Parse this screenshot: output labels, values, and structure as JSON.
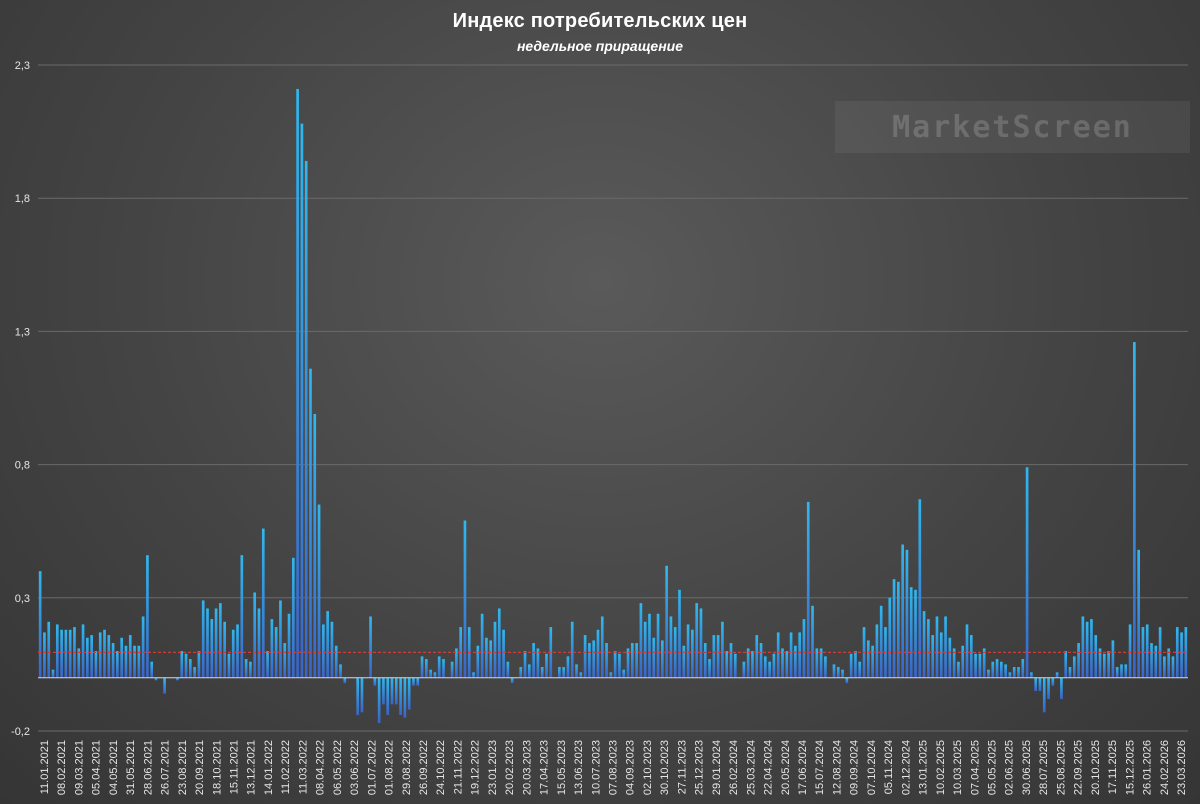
{
  "header": {
    "title": "Индекс потребительских цен",
    "subtitle": "недельное приращение"
  },
  "watermark": "MarketScreen",
  "chart_data": {
    "type": "bar",
    "title": "Индекс потребительских цен",
    "subtitle": "недельное приращение",
    "xlabel": "",
    "ylabel": "",
    "ylim": [
      -0.2,
      2.3
    ],
    "yticks": [
      "2,3",
      "1,8",
      "1,3",
      "0,8",
      "0,3",
      "-0,2"
    ],
    "ytick_values": [
      2.3,
      1.8,
      1.3,
      0.8,
      0.3,
      -0.2
    ],
    "grid": true,
    "legend": "none",
    "reference_line": {
      "value": 0.095,
      "color": "#d23a3a",
      "style": "dashed"
    },
    "colors": {
      "bar_top": "#2fb8ef",
      "bar_bottom": "#3a64c8"
    },
    "x_tick_labels": [
      "11.01.2021",
      "08.02.2021",
      "09.03.2021",
      "05.04.2021",
      "04.05.2021",
      "31.05.2021",
      "28.06.2021",
      "26.07.2021",
      "23.08.2021",
      "20.09.2021",
      "18.10.2021",
      "15.11.2021",
      "13.12.2021",
      "14.01.2022",
      "11.02.2022",
      "11.03.2022",
      "08.04.2022",
      "06.05.2022",
      "03.06.2022",
      "01.07.2022",
      "01.08.2022",
      "29.08.2022",
      "26.09.2022",
      "24.10.2022",
      "21.11.2022",
      "19.12.2022",
      "23.01.2023",
      "20.02.2023",
      "20.03.2023",
      "17.04.2023",
      "15.05.2023",
      "13.06.2023",
      "10.07.2023",
      "07.08.2023",
      "04.09.2023",
      "02.10.2023",
      "30.10.2023",
      "27.11.2023",
      "25.12.2023",
      "29.01.2024",
      "26.02.2024",
      "25.03.2024",
      "22.04.2024",
      "20.05.2024",
      "17.06.2024",
      "15.07.2024",
      "12.08.2024",
      "09.09.2024",
      "07.10.2024",
      "05.11.2024",
      "02.12.2024",
      "13.01.2025",
      "10.02.2025",
      "10.03.2025",
      "07.04.2025",
      "05.05.2025",
      "02.06.2025",
      "30.06.2025",
      "28.07.2025",
      "25.08.2025",
      "22.09.2025",
      "20.10.2025",
      "17.11.2025",
      "15.12.2025",
      "26.01.2026",
      "24.02.2026",
      "23.03.2026"
    ],
    "values": [
      0.4,
      0.17,
      0.21,
      0.03,
      0.2,
      0.18,
      0.18,
      0.18,
      0.19,
      0.11,
      0.2,
      0.15,
      0.16,
      0.1,
      0.17,
      0.18,
      0.16,
      0.13,
      0.1,
      0.15,
      0.12,
      0.16,
      0.12,
      0.12,
      0.23,
      0.46,
      0.06,
      -0.01,
      0.0,
      -0.06,
      0.0,
      0.0,
      -0.01,
      0.1,
      0.09,
      0.07,
      0.04,
      0.1,
      0.29,
      0.26,
      0.22,
      0.26,
      0.28,
      0.21,
      0.09,
      0.18,
      0.2,
      0.46,
      0.07,
      0.06,
      0.32,
      0.26,
      0.56,
      0.1,
      0.22,
      0.19,
      0.29,
      0.13,
      0.24,
      0.45,
      2.21,
      2.08,
      1.94,
      1.16,
      0.99,
      0.65,
      0.2,
      0.25,
      0.21,
      0.12,
      0.05,
      -0.02,
      0.0,
      0.0,
      -0.14,
      -0.13,
      0.0,
      0.23,
      -0.03,
      -0.17,
      -0.1,
      -0.14,
      -0.1,
      -0.1,
      -0.14,
      -0.15,
      -0.12,
      -0.03,
      -0.03,
      0.08,
      0.07,
      0.03,
      0.02,
      0.08,
      0.07,
      0.0,
      0.06,
      0.11,
      0.19,
      0.59,
      0.19,
      0.02,
      0.12,
      0.24,
      0.15,
      0.14,
      0.21,
      0.26,
      0.18,
      0.06,
      -0.02,
      0.0,
      0.04,
      0.1,
      0.05,
      0.13,
      0.11,
      0.04,
      0.09,
      0.19,
      0.0,
      0.04,
      0.04,
      0.08,
      0.21,
      0.05,
      0.02,
      0.16,
      0.13,
      0.14,
      0.18,
      0.23,
      0.13,
      0.02,
      0.1,
      0.09,
      0.03,
      0.11,
      0.13,
      0.13,
      0.28,
      0.21,
      0.24,
      0.15,
      0.24,
      0.14,
      0.42,
      0.23,
      0.19,
      0.33,
      0.12,
      0.2,
      0.18,
      0.28,
      0.26,
      0.13,
      0.07,
      0.16,
      0.16,
      0.21,
      0.1,
      0.13,
      0.09,
      0.0,
      0.06,
      0.11,
      0.1,
      0.16,
      0.13,
      0.08,
      0.06,
      0.09,
      0.17,
      0.11,
      0.1,
      0.17,
      0.12,
      0.17,
      0.22,
      0.66,
      0.27,
      0.11,
      0.11,
      0.08,
      0.0,
      0.05,
      0.04,
      0.03,
      -0.02,
      0.09,
      0.1,
      0.06,
      0.19,
      0.14,
      0.12,
      0.2,
      0.27,
      0.19,
      0.3,
      0.37,
      0.36,
      0.5,
      0.48,
      0.34,
      0.33,
      0.67,
      0.25,
      0.22,
      0.16,
      0.23,
      0.17,
      0.23,
      0.15,
      0.11,
      0.06,
      0.12,
      0.2,
      0.16,
      0.09,
      0.09,
      0.11,
      0.03,
      0.06,
      0.07,
      0.06,
      0.05,
      0.02,
      0.04,
      0.04,
      0.07,
      0.79,
      0.02,
      -0.05,
      -0.05,
      -0.13,
      -0.08,
      -0.03,
      0.02,
      -0.08,
      0.1,
      0.04,
      0.08,
      0.13,
      0.23,
      0.21,
      0.22,
      0.16,
      0.11,
      0.09,
      0.1,
      0.14,
      0.04,
      0.05,
      0.05,
      0.2,
      1.26,
      0.48,
      0.19,
      0.2,
      0.13,
      0.12,
      0.19,
      0.08,
      0.11,
      0.08,
      0.19,
      0.17,
      0.19
    ]
  }
}
